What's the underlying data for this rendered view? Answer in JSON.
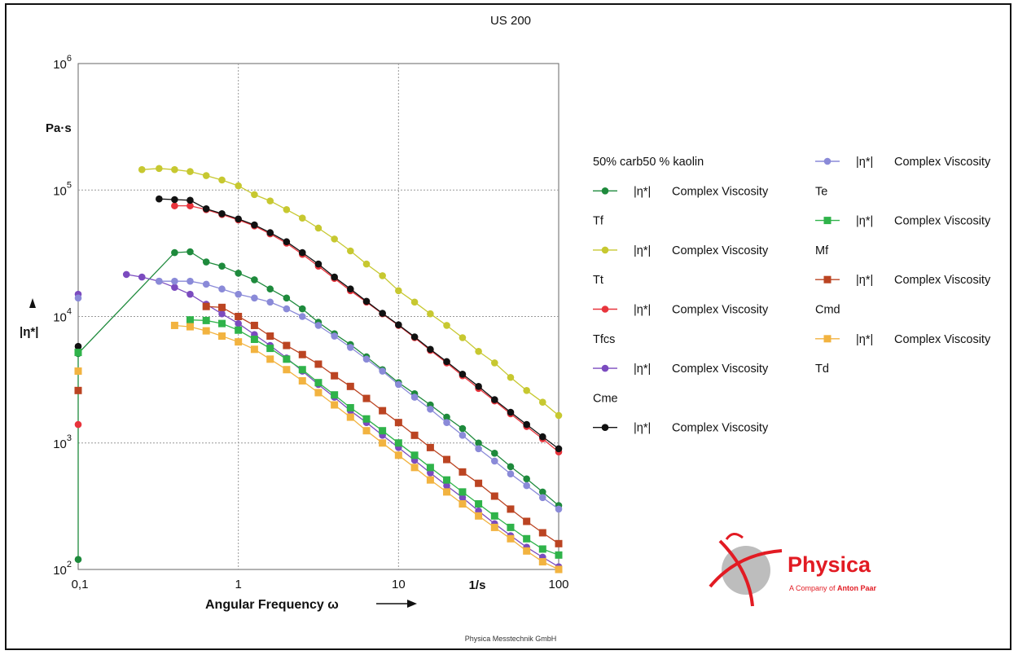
{
  "chart_data": {
    "type": "line",
    "title": "US 200",
    "xlabel": "Angular Frequency ω",
    "xunit": "1/s",
    "ylabel": "|η*|",
    "yunit": "Pa·s",
    "x_scale": "log",
    "y_scale": "log",
    "xlim": [
      0.1,
      100
    ],
    "ylim": [
      100,
      1000000
    ],
    "x_tick_labels": [
      "0,1",
      "1",
      "10",
      "100"
    ],
    "y_tick_labels": [
      {
        "base": "10",
        "exp": "2"
      },
      {
        "base": "10",
        "exp": "3"
      },
      {
        "base": "10",
        "exp": "4"
      },
      {
        "base": "10",
        "exp": "5"
      },
      {
        "base": "10",
        "exp": "6"
      }
    ],
    "grid": true,
    "legend_position": "right",
    "footer": "Physica Messtechnik GmbH",
    "series": [
      {
        "name": "50% carb50 % kaolin",
        "label": "|η*|",
        "desc": "Complex Viscosity",
        "color": "#1e8a3c",
        "marker": "circle",
        "points": [
          [
            0.1,
            120
          ],
          [
            0.1,
            5100
          ],
          [
            0.4,
            32000
          ],
          [
            0.5,
            32500
          ],
          [
            0.63,
            27000
          ],
          [
            0.79,
            25000
          ],
          [
            1.0,
            22000
          ],
          [
            1.26,
            19500
          ],
          [
            1.58,
            16500
          ],
          [
            2.0,
            14000
          ],
          [
            2.51,
            11500
          ],
          [
            3.16,
            9000
          ],
          [
            3.98,
            7300
          ],
          [
            5.01,
            6000
          ],
          [
            6.31,
            4800
          ],
          [
            7.94,
            3800
          ],
          [
            10,
            3000
          ],
          [
            12.6,
            2450
          ],
          [
            15.8,
            2000
          ],
          [
            20,
            1600
          ],
          [
            25.1,
            1300
          ],
          [
            31.6,
            1000
          ],
          [
            39.8,
            830
          ],
          [
            50.1,
            650
          ],
          [
            63.1,
            520
          ],
          [
            79.4,
            410
          ],
          [
            100,
            320
          ]
        ]
      },
      {
        "name": "Tf",
        "label": "|η*|",
        "desc": "Complex Viscosity",
        "color": "#c7c830",
        "marker": "circle",
        "points": [
          [
            0.25,
            145000
          ],
          [
            0.32,
            148000
          ],
          [
            0.4,
            145000
          ],
          [
            0.5,
            140000
          ],
          [
            0.63,
            130000
          ],
          [
            0.79,
            120000
          ],
          [
            1.0,
            108000
          ],
          [
            1.26,
            92000
          ],
          [
            1.58,
            82000
          ],
          [
            2.0,
            70000
          ],
          [
            2.51,
            60000
          ],
          [
            3.16,
            50000
          ],
          [
            3.98,
            41000
          ],
          [
            5.01,
            33000
          ],
          [
            6.31,
            26000
          ],
          [
            7.94,
            21000
          ],
          [
            10,
            16000
          ],
          [
            12.6,
            13000
          ],
          [
            15.8,
            10500
          ],
          [
            20,
            8500
          ],
          [
            25.1,
            6800
          ],
          [
            31.6,
            5300
          ],
          [
            39.8,
            4300
          ],
          [
            50.1,
            3300
          ],
          [
            63.1,
            2600
          ],
          [
            79.4,
            2100
          ],
          [
            100,
            1650
          ]
        ]
      },
      {
        "name": "Tt",
        "label": "|η*|",
        "desc": "Complex Viscosity",
        "color": "#e8343c",
        "marker": "circle",
        "points": [
          [
            0.1,
            1400
          ],
          [
            0.4,
            75000
          ],
          [
            0.5,
            75000
          ],
          [
            0.63,
            70000
          ],
          [
            0.79,
            64000
          ],
          [
            1.0,
            58000
          ],
          [
            1.26,
            52000
          ],
          [
            1.58,
            45000
          ],
          [
            2.0,
            38000
          ],
          [
            2.51,
            31000
          ],
          [
            3.16,
            25000
          ],
          [
            3.98,
            20000
          ],
          [
            5.01,
            16000
          ],
          [
            6.31,
            13000
          ],
          [
            7.94,
            10500
          ],
          [
            10,
            8500
          ],
          [
            12.6,
            6800
          ],
          [
            15.8,
            5400
          ],
          [
            20,
            4300
          ],
          [
            25.1,
            3400
          ],
          [
            31.6,
            2700
          ],
          [
            39.8,
            2150
          ],
          [
            50.1,
            1700
          ],
          [
            63.1,
            1350
          ],
          [
            79.4,
            1080
          ],
          [
            100,
            850
          ]
        ]
      },
      {
        "name": "Tfcs",
        "label": "|η*|",
        "desc": "Complex Viscosity",
        "color": "#7b4bbf",
        "marker": "circle",
        "points": [
          [
            0.1,
            15000
          ],
          [
            0.2,
            21500
          ],
          [
            0.25,
            20500
          ],
          [
            0.32,
            19000
          ],
          [
            0.4,
            17000
          ],
          [
            0.5,
            15000
          ],
          [
            0.63,
            12500
          ],
          [
            0.79,
            10500
          ],
          [
            1.0,
            8800
          ],
          [
            1.26,
            7200
          ],
          [
            1.58,
            5900
          ],
          [
            2.0,
            4700
          ],
          [
            2.51,
            3700
          ],
          [
            3.16,
            2900
          ],
          [
            3.98,
            2300
          ],
          [
            5.01,
            1800
          ],
          [
            6.31,
            1450
          ],
          [
            7.94,
            1150
          ],
          [
            10,
            920
          ],
          [
            12.6,
            730
          ],
          [
            15.8,
            580
          ],
          [
            20,
            460
          ],
          [
            25.1,
            370
          ],
          [
            31.6,
            290
          ],
          [
            39.8,
            230
          ],
          [
            50.1,
            185
          ],
          [
            63.1,
            150
          ],
          [
            79.4,
            125
          ],
          [
            100,
            105
          ]
        ]
      },
      {
        "name": "Cme",
        "label": "|η*|",
        "desc": "Complex Viscosity",
        "color": "#111111",
        "marker": "circle",
        "points": [
          [
            0.1,
            5800
          ],
          [
            0.32,
            85000
          ],
          [
            0.4,
            84000
          ],
          [
            0.5,
            83000
          ],
          [
            0.63,
            71000
          ],
          [
            0.79,
            65000
          ],
          [
            1.0,
            59000
          ],
          [
            1.26,
            53000
          ],
          [
            1.58,
            46000
          ],
          [
            2.0,
            39000
          ],
          [
            2.51,
            32000
          ],
          [
            3.16,
            26000
          ],
          [
            3.98,
            20500
          ],
          [
            5.01,
            16500
          ],
          [
            6.31,
            13200
          ],
          [
            7.94,
            10600
          ],
          [
            10,
            8600
          ],
          [
            12.6,
            6900
          ],
          [
            15.8,
            5500
          ],
          [
            20,
            4400
          ],
          [
            25.1,
            3500
          ],
          [
            31.6,
            2800
          ],
          [
            39.8,
            2200
          ],
          [
            50.1,
            1750
          ],
          [
            63.1,
            1400
          ],
          [
            79.4,
            1120
          ],
          [
            100,
            900
          ]
        ]
      },
      {
        "name": "Te",
        "label": "|η*|",
        "desc": "Complex Viscosity",
        "color": "#8a8ad8",
        "marker": "circle",
        "points": [
          [
            0.1,
            14000
          ],
          [
            0.32,
            19000
          ],
          [
            0.4,
            19000
          ],
          [
            0.5,
            19000
          ],
          [
            0.63,
            18000
          ],
          [
            0.79,
            16500
          ],
          [
            1.0,
            15000
          ],
          [
            1.26,
            14000
          ],
          [
            1.58,
            13000
          ],
          [
            2.0,
            11500
          ],
          [
            2.51,
            10000
          ],
          [
            3.16,
            8500
          ],
          [
            3.98,
            7000
          ],
          [
            5.01,
            5700
          ],
          [
            6.31,
            4600
          ],
          [
            7.94,
            3700
          ],
          [
            10,
            2900
          ],
          [
            12.6,
            2300
          ],
          [
            15.8,
            1850
          ],
          [
            20,
            1450
          ],
          [
            25.1,
            1150
          ],
          [
            31.6,
            900
          ],
          [
            39.8,
            720
          ],
          [
            50.1,
            570
          ],
          [
            63.1,
            460
          ],
          [
            79.4,
            370
          ],
          [
            100,
            300
          ]
        ]
      },
      {
        "name": "Mf",
        "label": "|η*|",
        "desc": "Complex Viscosity",
        "color": "#2fb34a",
        "marker": "square",
        "points": [
          [
            0.1,
            5200
          ],
          [
            0.5,
            9400
          ],
          [
            0.63,
            9300
          ],
          [
            0.79,
            8800
          ],
          [
            1.0,
            7800
          ],
          [
            1.26,
            6600
          ],
          [
            1.58,
            5600
          ],
          [
            2.0,
            4600
          ],
          [
            2.51,
            3800
          ],
          [
            3.16,
            3000
          ],
          [
            3.98,
            2400
          ],
          [
            5.01,
            1900
          ],
          [
            6.31,
            1550
          ],
          [
            7.94,
            1250
          ],
          [
            10,
            1000
          ],
          [
            12.6,
            800
          ],
          [
            15.8,
            640
          ],
          [
            20,
            510
          ],
          [
            25.1,
            410
          ],
          [
            31.6,
            330
          ],
          [
            39.8,
            265
          ],
          [
            50.1,
            215
          ],
          [
            63.1,
            175
          ],
          [
            79.4,
            145
          ],
          [
            100,
            130
          ]
        ]
      },
      {
        "name": "Cmd",
        "label": "|η*|",
        "desc": "Complex Viscosity",
        "color": "#bb4422",
        "marker": "square",
        "points": [
          [
            0.1,
            2600
          ],
          [
            0.63,
            12000
          ],
          [
            0.79,
            11800
          ],
          [
            1.0,
            10000
          ],
          [
            1.26,
            8500
          ],
          [
            1.58,
            7000
          ],
          [
            2.0,
            5900
          ],
          [
            2.51,
            5000
          ],
          [
            3.16,
            4200
          ],
          [
            3.98,
            3400
          ],
          [
            5.01,
            2800
          ],
          [
            6.31,
            2250
          ],
          [
            7.94,
            1800
          ],
          [
            10,
            1450
          ],
          [
            12.6,
            1150
          ],
          [
            15.8,
            920
          ],
          [
            20,
            740
          ],
          [
            25.1,
            590
          ],
          [
            31.6,
            480
          ],
          [
            39.8,
            380
          ],
          [
            50.1,
            300
          ],
          [
            63.1,
            240
          ],
          [
            79.4,
            195
          ],
          [
            100,
            160
          ]
        ]
      },
      {
        "name": "Td",
        "label": "|η*|",
        "desc": "Complex Viscosity",
        "color": "#f2b340",
        "marker": "square",
        "points": [
          [
            0.1,
            3700
          ],
          [
            0.4,
            8500
          ],
          [
            0.5,
            8300
          ],
          [
            0.63,
            7700
          ],
          [
            0.79,
            7000
          ],
          [
            1.0,
            6300
          ],
          [
            1.26,
            5500
          ],
          [
            1.58,
            4600
          ],
          [
            2.0,
            3800
          ],
          [
            2.51,
            3100
          ],
          [
            3.16,
            2500
          ],
          [
            3.98,
            2000
          ],
          [
            5.01,
            1600
          ],
          [
            6.31,
            1250
          ],
          [
            7.94,
            1000
          ],
          [
            10,
            800
          ],
          [
            12.6,
            640
          ],
          [
            15.8,
            510
          ],
          [
            20,
            410
          ],
          [
            25.1,
            330
          ],
          [
            31.6,
            265
          ],
          [
            39.8,
            215
          ],
          [
            50.1,
            175
          ],
          [
            63.1,
            140
          ],
          [
            79.4,
            115
          ],
          [
            100,
            100
          ]
        ]
      }
    ]
  },
  "logo": {
    "name": "Physica",
    "tagline_prefix": "A Company of",
    "tagline_brand": "Anton Paar",
    "color": "#e21b23"
  }
}
